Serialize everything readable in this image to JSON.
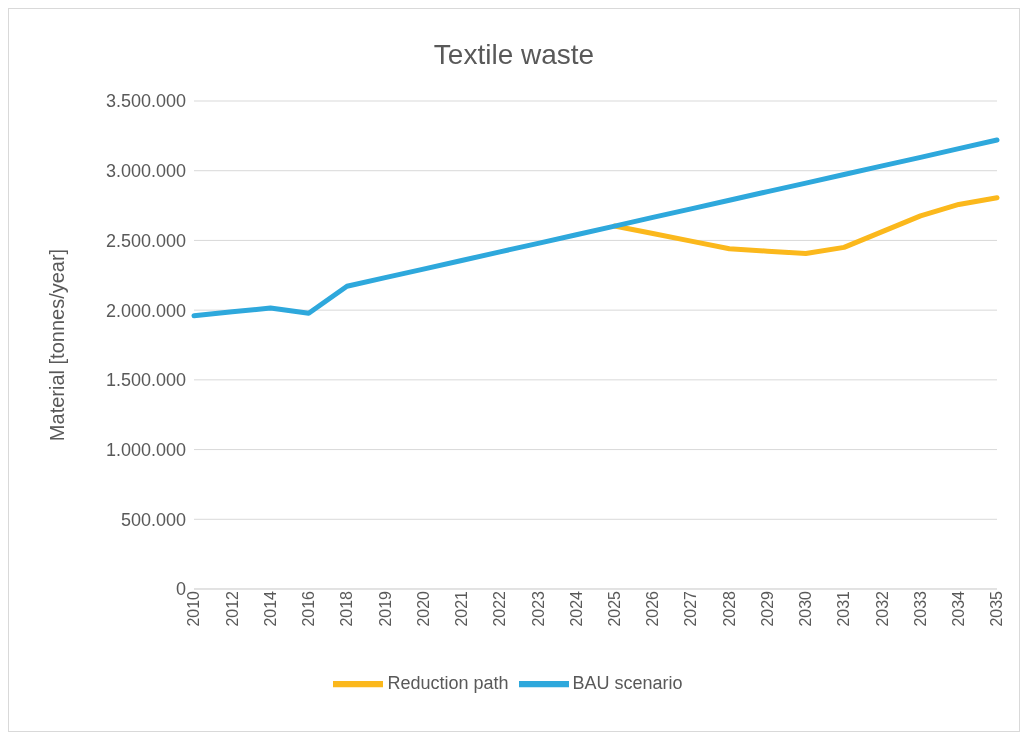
{
  "chart_data": {
    "type": "line",
    "title": "Textile waste",
    "ylabel": "Material [tonnes/year]",
    "categories": [
      "2010",
      "2012",
      "2014",
      "2016",
      "2018",
      "2019",
      "2020",
      "2021",
      "2022",
      "2023",
      "2024",
      "2025",
      "2026",
      "2027",
      "2028",
      "2029",
      "2030",
      "2031",
      "2032",
      "2033",
      "2034",
      "2035"
    ],
    "series": [
      {
        "name": "Reduction path",
        "color": "#fbb81c",
        "values": [
          null,
          null,
          null,
          null,
          null,
          null,
          null,
          null,
          null,
          null,
          null,
          2603000,
          2550000,
          2495000,
          2440000,
          2423000,
          2406000,
          2450000,
          2563000,
          2676000,
          2758000,
          2806000
        ]
      },
      {
        "name": "BAU scenario",
        "color": "#2ea8dc",
        "values": [
          1960000,
          1988000,
          2015000,
          1978000,
          2171000,
          2233000,
          2294000,
          2356000,
          2418000,
          2479000,
          2541000,
          2603000,
          2665000,
          2726000,
          2788000,
          2850000,
          2911000,
          2973000,
          3035000,
          3096000,
          3158000,
          3220000
        ]
      }
    ],
    "ylim": [
      0,
      3500000
    ],
    "yticks": [
      {
        "value": 0,
        "label": "0"
      },
      {
        "value": 500000,
        "label": "500.000"
      },
      {
        "value": 1000000,
        "label": "1.000.000"
      },
      {
        "value": 1500000,
        "label": "1.500.000"
      },
      {
        "value": 2000000,
        "label": "2.000.000"
      },
      {
        "value": 2500000,
        "label": "2.500.000"
      },
      {
        "value": 3000000,
        "label": "3.000.000"
      },
      {
        "value": 3500000,
        "label": "3.500.000"
      }
    ],
    "grid": "y",
    "legend": "bottom",
    "marker": "none",
    "line_style": "solid"
  }
}
